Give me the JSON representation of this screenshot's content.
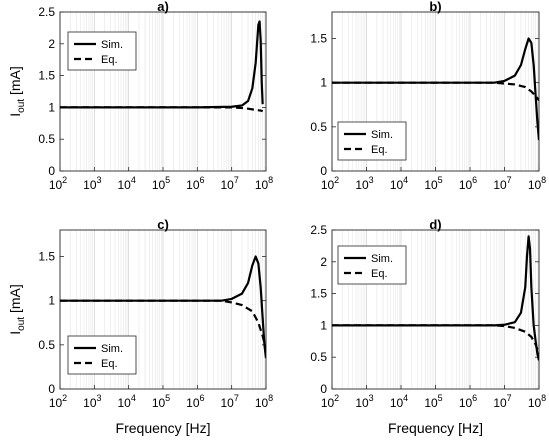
{
  "chart_data": [
    {
      "type": "line",
      "title": "a)",
      "xlabel": "",
      "ylabel": "I_out [mA]",
      "ylabel_main": "I",
      "ylabel_sub": "out",
      "ylabel_unit": " [mA]",
      "xscale": "log",
      "xlim": [
        100,
        100000000
      ],
      "ylim": [
        0,
        2.5
      ],
      "yticks": [
        "0",
        "0.5",
        "1",
        "1.5",
        "2",
        "2.5"
      ],
      "ytick_values": [
        0,
        0.5,
        1,
        1.5,
        2,
        2.5
      ],
      "xtick_exponents": [
        "2",
        "3",
        "4",
        "5",
        "6",
        "7",
        "8"
      ],
      "grid": true,
      "legend": "top-left",
      "series": [
        {
          "name": "Sim.",
          "style": "solid",
          "x": [
            100,
            1000000,
            10000000,
            20000000,
            30000000,
            40000000,
            50000000,
            60000000,
            65000000,
            70000000,
            75000000,
            80000000
          ],
          "y": [
            1,
            1,
            1.01,
            1.03,
            1.1,
            1.3,
            1.7,
            2.3,
            2.35,
            2.05,
            1.4,
            1.05
          ]
        },
        {
          "name": "Eq.",
          "style": "dashed",
          "x": [
            100,
            1000000,
            10000000,
            20000000,
            30000000,
            50000000,
            70000000,
            80000000
          ],
          "y": [
            1,
            1,
            1.0,
            0.99,
            0.98,
            0.96,
            0.95,
            0.94
          ]
        }
      ]
    },
    {
      "type": "line",
      "title": "b)",
      "xlabel": "",
      "ylabel": "",
      "xscale": "log",
      "xlim": [
        100,
        100000000
      ],
      "ylim": [
        0,
        1.8
      ],
      "yticks": [
        "0",
        "0.5",
        "1",
        "1.5"
      ],
      "ytick_values": [
        0,
        0.5,
        1,
        1.5
      ],
      "xtick_exponents": [
        "2",
        "3",
        "4",
        "5",
        "6",
        "7",
        "8"
      ],
      "grid": true,
      "legend": "bottom-left",
      "series": [
        {
          "name": "Sim.",
          "style": "solid",
          "x": [
            100,
            1000000,
            5000000,
            10000000,
            20000000,
            30000000,
            40000000,
            50000000,
            60000000,
            70000000,
            80000000,
            90000000,
            100000000
          ],
          "y": [
            1,
            1,
            1.0,
            1.02,
            1.08,
            1.2,
            1.38,
            1.5,
            1.45,
            1.2,
            0.85,
            0.55,
            0.35
          ]
        },
        {
          "name": "Eq.",
          "style": "dashed",
          "x": [
            100,
            5000000,
            10000000,
            20000000,
            40000000,
            60000000,
            80000000,
            100000000
          ],
          "y": [
            1,
            1,
            0.99,
            0.98,
            0.95,
            0.9,
            0.85,
            0.8
          ]
        }
      ]
    },
    {
      "type": "line",
      "title": "c)",
      "xlabel": "Frequency [Hz]",
      "ylabel": "I_out [mA]",
      "ylabel_main": "I",
      "ylabel_sub": "out",
      "ylabel_unit": " [mA]",
      "xscale": "log",
      "xlim": [
        100,
        100000000
      ],
      "ylim": [
        0,
        1.8
      ],
      "yticks": [
        "0",
        "0.5",
        "1",
        "1.5"
      ],
      "ytick_values": [
        0,
        0.5,
        1,
        1.5
      ],
      "xtick_exponents": [
        "2",
        "3",
        "4",
        "5",
        "6",
        "7",
        "8"
      ],
      "grid": true,
      "legend": "bottom-left",
      "series": [
        {
          "name": "Sim.",
          "style": "solid",
          "x": [
            100,
            1000000,
            5000000,
            10000000,
            20000000,
            30000000,
            40000000,
            50000000,
            60000000,
            70000000,
            80000000,
            90000000,
            100000000
          ],
          "y": [
            1,
            1,
            1.0,
            1.02,
            1.08,
            1.2,
            1.4,
            1.5,
            1.42,
            1.15,
            0.8,
            0.5,
            0.35
          ]
        },
        {
          "name": "Eq.",
          "style": "dashed",
          "x": [
            100,
            5000000,
            10000000,
            20000000,
            40000000,
            60000000,
            80000000,
            100000000
          ],
          "y": [
            1,
            1,
            0.98,
            0.95,
            0.88,
            0.75,
            0.6,
            0.45
          ]
        }
      ]
    },
    {
      "type": "line",
      "title": "d)",
      "xlabel": "Frequency [Hz]",
      "ylabel": "",
      "xscale": "log",
      "xlim": [
        100,
        100000000
      ],
      "ylim": [
        0,
        2.5
      ],
      "yticks": [
        "0",
        "0.5",
        "1",
        "1.5",
        "2",
        "2.5"
      ],
      "ytick_values": [
        0,
        0.5,
        1,
        1.5,
        2,
        2.5
      ],
      "xtick_exponents": [
        "2",
        "3",
        "4",
        "5",
        "6",
        "7",
        "8"
      ],
      "grid": true,
      "legend": "top-left",
      "series": [
        {
          "name": "Sim.",
          "style": "solid",
          "x": [
            100,
            1000000,
            5000000,
            10000000,
            20000000,
            30000000,
            40000000,
            45000000,
            50000000,
            55000000,
            60000000,
            70000000,
            80000000,
            90000000,
            100000000
          ],
          "y": [
            1,
            1,
            1.0,
            1.01,
            1.05,
            1.2,
            1.6,
            2.1,
            2.4,
            2.2,
            1.6,
            1.0,
            0.75,
            0.55,
            0.45
          ]
        },
        {
          "name": "Eq.",
          "style": "dashed",
          "x": [
            100,
            5000000,
            10000000,
            20000000,
            40000000,
            60000000,
            80000000,
            100000000
          ],
          "y": [
            1,
            1,
            0.99,
            0.96,
            0.9,
            0.82,
            0.7,
            0.55
          ]
        }
      ]
    }
  ]
}
